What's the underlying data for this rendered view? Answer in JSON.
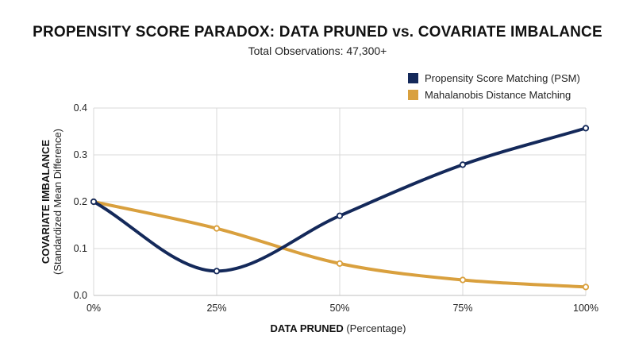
{
  "chart_data": {
    "type": "line",
    "title": "PROPENSITY SCORE PARADOX: DATA PRUNED vs. COVARIATE IMBALANCE",
    "subtitle": "Total Observations: 47,300+",
    "xlabel_bold": "DATA PRUNED",
    "xlabel_rest": " (Percentage)",
    "ylabel_bold": "COVARIATE IMBALANCE",
    "ylabel_rest": "(Standardized Mean Difference)",
    "x": [
      0,
      25,
      50,
      75,
      100
    ],
    "x_tick_labels": [
      "0%",
      "25%",
      "50%",
      "75%",
      "100%"
    ],
    "y_ticks": [
      0.0,
      0.1,
      0.2,
      0.3,
      0.4
    ],
    "y_tick_labels": [
      "0.0",
      "0.1",
      "0.2",
      "0.3",
      "0.4"
    ],
    "xlim": [
      0,
      100
    ],
    "ylim": [
      0,
      0.4
    ],
    "grid": true,
    "legend_position": "top-right",
    "series": [
      {
        "name": "Propensity Score Matching (PSM)",
        "color": "#14295a",
        "values": [
          0.2,
          0.052,
          0.17,
          0.279,
          0.357
        ]
      },
      {
        "name": "Mahalanobis Distance Matching",
        "color": "#d9a03e",
        "values": [
          0.2,
          0.143,
          0.068,
          0.033,
          0.018
        ]
      }
    ]
  }
}
